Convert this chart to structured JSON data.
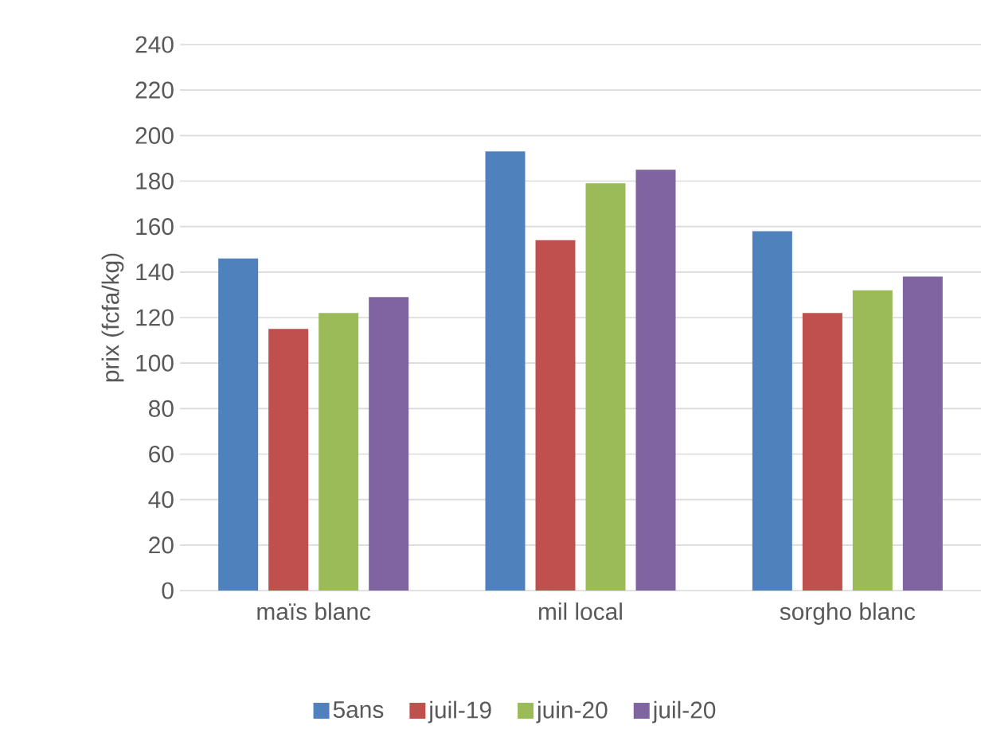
{
  "chart_data": {
    "type": "bar",
    "ylabel": "prix (fcfa/kg)",
    "categories": [
      "maïs blanc",
      "mil local",
      "sorgho blanc"
    ],
    "series": [
      {
        "name": "5ans",
        "color": "#4f81bd",
        "values": [
          146,
          193,
          158
        ]
      },
      {
        "name": "juil-19",
        "color": "#c0504d",
        "values": [
          115,
          154,
          122
        ]
      },
      {
        "name": "juin-20",
        "color": "#9bbb59",
        "values": [
          122,
          179,
          132
        ]
      },
      {
        "name": "juil-20",
        "color": "#8064a2",
        "values": [
          129,
          185,
          138
        ]
      }
    ],
    "ylim": [
      0,
      240
    ],
    "yticks": [
      0,
      20,
      40,
      60,
      80,
      100,
      120,
      140,
      160,
      180,
      200,
      220,
      240
    ],
    "grid": "y",
    "legend": "bottom"
  }
}
